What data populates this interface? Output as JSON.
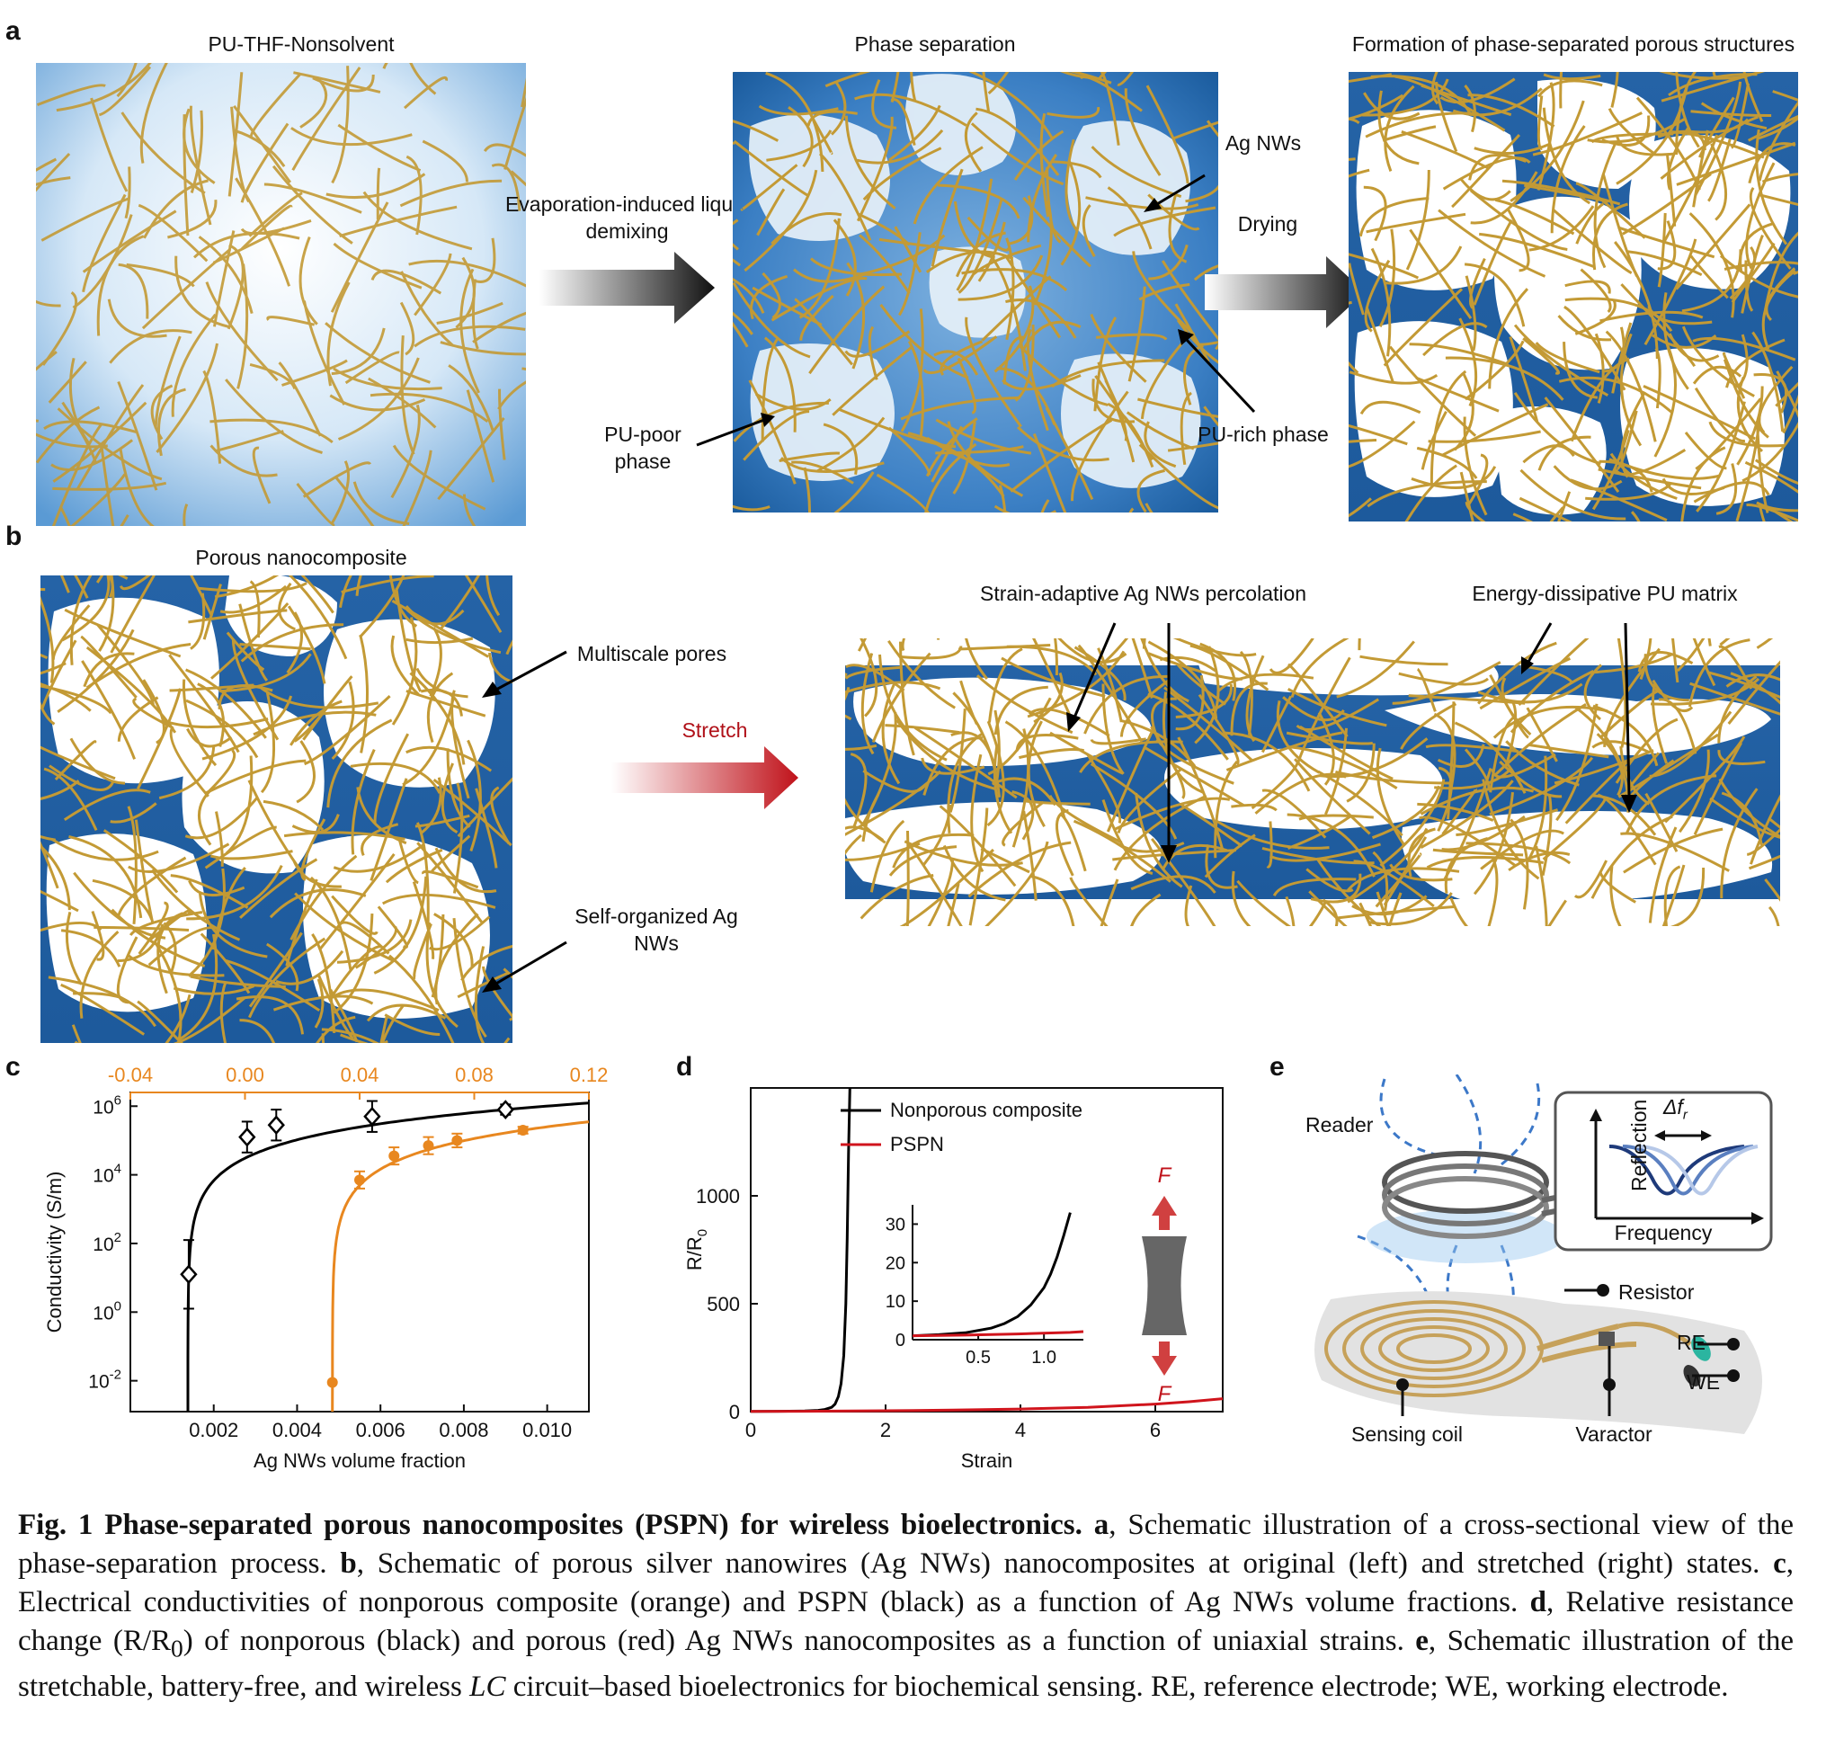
{
  "panel_a": {
    "letter": "a",
    "box1_title": "PU-THF-Nonsolvent",
    "box2_title": "Phase separation",
    "box3_title": "Formation of phase-separated porous structures",
    "arrow1_label": "Evaporation-induced liquid demixing",
    "arrow2_label": "Drying",
    "ag_nws": "Ag NWs",
    "pu_poor": "PU-poor phase",
    "pu_rich": "PU-rich phase"
  },
  "panel_b": {
    "letter": "b",
    "box1_title": "Porous nanocomposite",
    "multiscale_pores": "Multiscale pores",
    "self_organized": "Self-organized Ag NWs",
    "stretch": "Stretch",
    "strain_adaptive": "Strain-adaptive Ag NWs percolation",
    "energy_dissipative": "Energy-dissipative PU matrix"
  },
  "panel_c": {
    "letter": "c"
  },
  "panel_d": {
    "letter": "d"
  },
  "panel_e": {
    "letter": "e",
    "reader": "Reader",
    "reflection": "Reflection",
    "frequency": "Frequency",
    "delta": "Δf",
    "delta_sub": "r",
    "resistor": "Resistor",
    "re": "RE",
    "we": "WE",
    "sensing_coil": "Sensing coil",
    "varactor": "Varactor"
  },
  "chart_data": [
    {
      "type": "scatter",
      "panel": "c",
      "xlabel": "Ag NWs volume fraction",
      "ylabel": "Conductivity (S/m)",
      "yscale": "log",
      "ylim_exp": [
        -2.9,
        6.4
      ],
      "bottom_axis": {
        "lim": [
          0,
          0.011
        ],
        "ticks": [
          "0.002",
          "0.004",
          "0.006",
          "0.008",
          "0.010"
        ],
        "tick_values": [
          0.002,
          0.004,
          0.006,
          0.008,
          0.01
        ]
      },
      "top_axis": {
        "lim": [
          -0.04,
          0.12
        ],
        "ticks": [
          "-0.04",
          "0.00",
          "0.04",
          "0.08",
          "0.12"
        ],
        "tick_values": [
          -0.04,
          0,
          0.04,
          0.08,
          0.12
        ],
        "color": "#e8871f"
      },
      "y_ticks": [
        {
          "base": "10",
          "exp": "-2",
          "value": -2
        },
        {
          "base": "10",
          "exp": "0",
          "value": 0
        },
        {
          "base": "10",
          "exp": "2",
          "value": 2
        },
        {
          "base": "10",
          "exp": "4",
          "value": 4
        },
        {
          "base": "10",
          "exp": "6",
          "value": 6
        }
      ],
      "series": [
        {
          "color": "#000000",
          "axis": "bottom",
          "marker": "open-diamond",
          "points": [
            [
              0.0014,
              1.1
            ],
            [
              0.0028,
              5.1
            ],
            [
              0.0035,
              5.45
            ],
            [
              0.0058,
              5.7
            ],
            [
              0.009,
              5.9
            ]
          ],
          "errors": [
            1.0,
            0.45,
            0.45,
            0.45,
            0.15
          ],
          "fit_percolation": 0.00138
        },
        {
          "color": "#e8871f",
          "axis": "top",
          "marker": "filled-circle",
          "points": [
            [
              0.0305,
              -2.05
            ],
            [
              0.04,
              3.85
            ],
            [
              0.052,
              4.55
            ],
            [
              0.064,
              4.85
            ],
            [
              0.074,
              5.0
            ],
            [
              0.097,
              5.3
            ]
          ],
          "errors": [
            0,
            0.25,
            0.25,
            0.25,
            0.2,
            0.1
          ],
          "fit_percolation": 0.0305
        }
      ]
    },
    {
      "type": "line",
      "panel": "d",
      "xlabel": "Strain",
      "ylabel": "R/R",
      "ylabel_sub": "0",
      "xlim": [
        0,
        7
      ],
      "ylim": [
        0,
        1500
      ],
      "xticks": [
        "0",
        "2",
        "4",
        "6"
      ],
      "xtick_values": [
        0,
        2,
        4,
        6
      ],
      "yticks": [
        "0",
        "500",
        "1000"
      ],
      "ytick_values": [
        0,
        500,
        1000
      ],
      "series": [
        {
          "name": "Nonporous composite",
          "color": "#000000",
          "x": [
            0,
            0.4,
            0.8,
            1.0,
            1.1,
            1.2,
            1.25,
            1.3,
            1.34,
            1.38,
            1.41,
            1.43,
            1.45,
            1.47
          ],
          "y": [
            1,
            1.5,
            3,
            6,
            10,
            20,
            35,
            70,
            130,
            260,
            500,
            800,
            1200,
            1500
          ]
        },
        {
          "name": "PSPN",
          "color": "#d0141c",
          "x": [
            0,
            1,
            2,
            3,
            4,
            5,
            6,
            6.5,
            7
          ],
          "y": [
            1,
            2,
            4,
            7,
            12,
            20,
            35,
            46,
            60
          ]
        }
      ],
      "inset": {
        "xlim": [
          0,
          1.3
        ],
        "ylim": [
          0,
          35
        ],
        "xticks": [
          "0.5",
          "1.0"
        ],
        "xtick_values": [
          0.5,
          1.0
        ],
        "yticks": [
          "0",
          "10",
          "20",
          "30"
        ],
        "ytick_values": [
          0,
          10,
          20,
          30
        ],
        "series": [
          {
            "color": "#000000",
            "x": [
              0,
              0.2,
              0.4,
              0.6,
              0.7,
              0.8,
              0.9,
              1.0,
              1.05,
              1.1,
              1.15,
              1.2
            ],
            "y": [
              1,
              1.3,
              1.8,
              3,
              4.2,
              6,
              9,
              13.5,
              17,
              21.5,
              27,
              33
            ]
          },
          {
            "color": "#d0141c",
            "x": [
              0,
              0.4,
              0.8,
              1.2,
              1.3
            ],
            "y": [
              1,
              1.2,
              1.5,
              1.9,
              2.1
            ]
          }
        ]
      },
      "force_label": "F"
    }
  ],
  "caption": {
    "title": "Fig. 1 Phase-separated porous nanocomposites (PSPN) for wireless bioelectronics.",
    "a_letter": "a",
    "a_text": ", Schematic illustration of a cross-sectional view of the phase-separation process. ",
    "b_letter": "b",
    "b_text": ", Schematic of porous silver nanowires (Ag NWs) nanocomposites at original (left) and stretched (right) states. ",
    "c_letter": "c",
    "c_text": ", Electrical conductivities of nonporous composite (orange) and PSPN (black) as a function of Ag NWs volume fractions. ",
    "d_letter": "d",
    "d_text1": ", Relative resistance change (R/R",
    "d_sub": "0",
    "d_text2": ") of nonporous (black) and porous (red) Ag NWs nanocomposites as a function of uniaxial strains. ",
    "e_letter": "e",
    "e_text1": ", Schematic illustration of the stretchable, battery-free, and wireless ",
    "e_lc": "LC",
    "e_text2": " circuit–based bioelectronics for biochemical sensing. RE, reference electrode; WE, working electrode."
  }
}
